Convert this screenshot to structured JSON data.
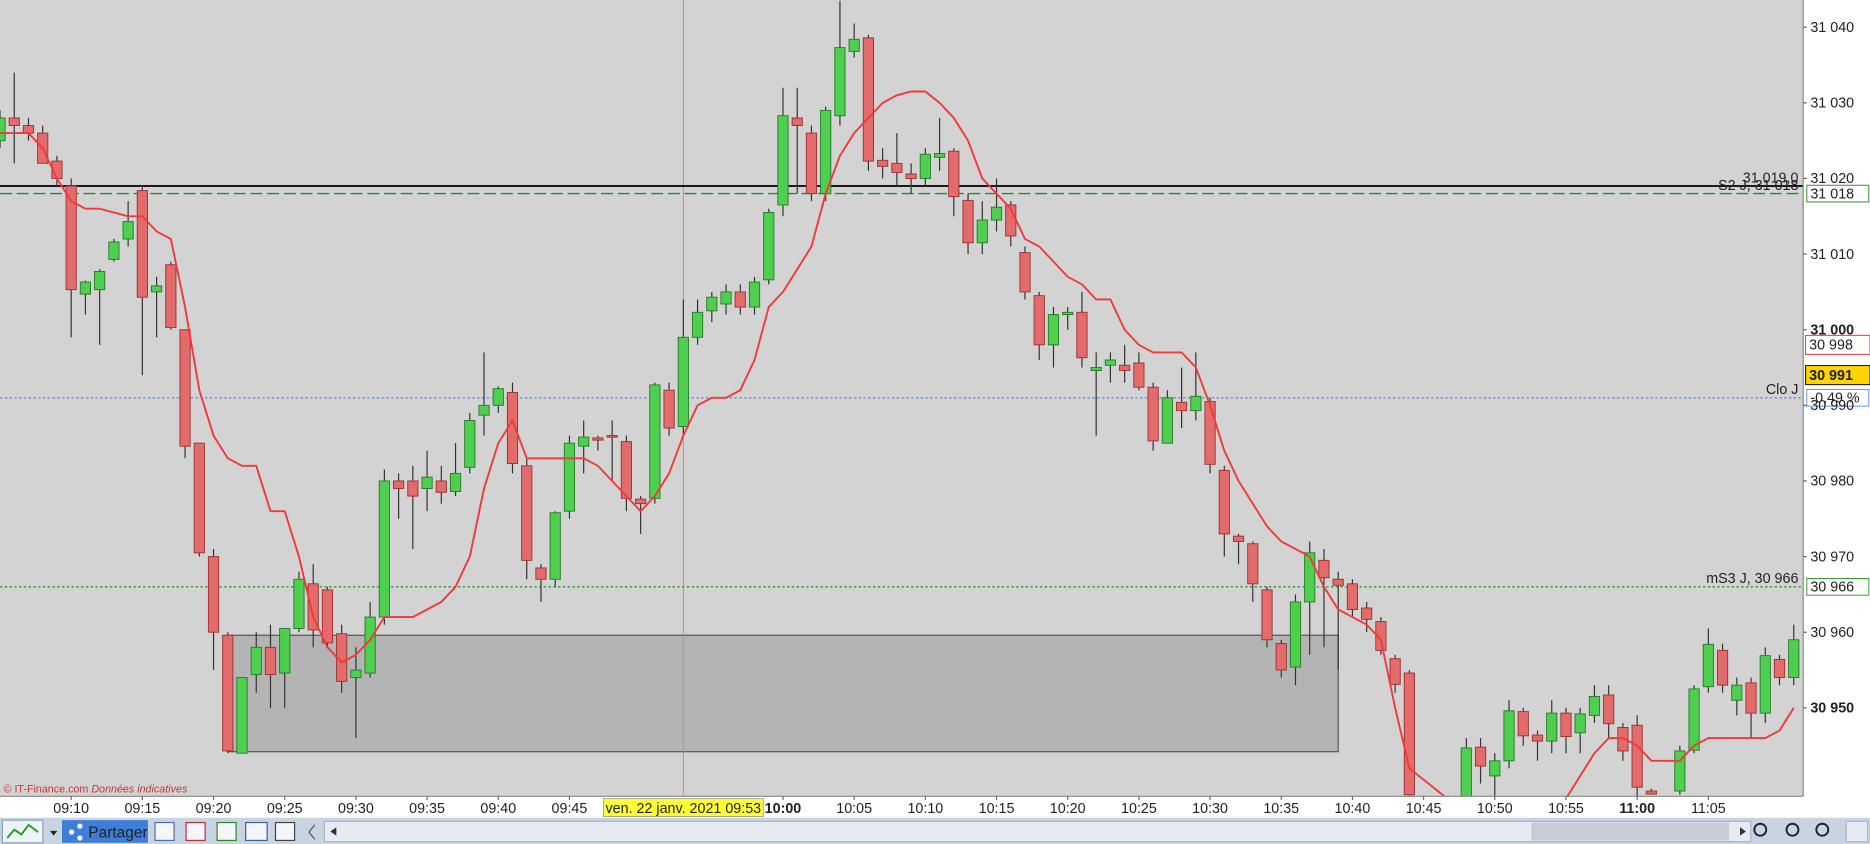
{
  "chart_data": {
    "type": "candlestick",
    "x": [
      "09:05",
      "09:06",
      "09:07",
      "09:08",
      "09:09",
      "09:10",
      "09:11",
      "09:12",
      "09:13",
      "09:14",
      "09:15",
      "09:16",
      "09:17",
      "09:18",
      "09:19",
      "09:20",
      "09:21",
      "09:22",
      "09:23",
      "09:24",
      "09:25",
      "09:26",
      "09:27",
      "09:28",
      "09:29",
      "09:30",
      "09:31",
      "09:32",
      "09:33",
      "09:34",
      "09:35",
      "09:36",
      "09:37",
      "09:38",
      "09:39",
      "09:40",
      "09:41",
      "09:42",
      "09:43",
      "09:44",
      "09:45",
      "09:46",
      "09:47",
      "09:48",
      "09:49",
      "09:50",
      "09:51",
      "09:52",
      "09:53",
      "09:54",
      "09:55",
      "09:56",
      "09:57",
      "09:58",
      "09:59",
      "10:00",
      "10:01",
      "10:02",
      "10:03",
      "10:04",
      "10:05",
      "10:06",
      "10:07",
      "10:08",
      "10:09",
      "10:10",
      "10:11",
      "10:12",
      "10:13",
      "10:14",
      "10:15",
      "10:16",
      "10:17",
      "10:18",
      "10:19",
      "10:20",
      "10:21",
      "10:22",
      "10:23",
      "10:24",
      "10:25",
      "10:26",
      "10:27",
      "10:28",
      "10:29",
      "10:30",
      "10:31",
      "10:32",
      "10:33",
      "10:34",
      "10:35",
      "10:36",
      "10:37",
      "10:38",
      "10:39",
      "10:40",
      "10:41",
      "10:42",
      "10:43",
      "10:44",
      "10:48",
      "10:49",
      "10:50",
      "10:51",
      "10:52",
      "10:53",
      "10:54",
      "10:55",
      "10:56",
      "10:57",
      "10:58",
      "10:59",
      "11:00",
      "11:01",
      "11:03",
      "11:04",
      "11:05",
      "11:06",
      "11:07",
      "11:08",
      "11:09",
      "11:10",
      "11:11"
    ],
    "open": [
      31025,
      31028,
      31027,
      31026,
      31022.3,
      31019,
      31004.7,
      31005.3,
      31009.3,
      31012,
      31018.4,
      31005,
      31008.6,
      31000,
      30985,
      30970,
      30959.6,
      30944,
      30954.4,
      30958,
      30954.6,
      30960.5,
      30966.4,
      30965.6,
      30959.8,
      30954,
      30954.6,
      30962,
      30980,
      30980,
      30979,
      30980,
      30978.6,
      30981.8,
      30988.7,
      30990,
      30991.7,
      30982,
      30968.5,
      30967,
      30976,
      30984.6,
      30985.7,
      30986,
      30985.2,
      30977.6,
      30977.7,
      30992,
      30987.2,
      30999,
      31002.5,
      31003.4,
      31005,
      31003,
      31006.6,
      31016.5,
      31028,
      31026,
      31018,
      31028.3,
      31036.8,
      31038.6,
      31022.4,
      31022,
      31020.6,
      31020,
      31022.8,
      31023.6,
      31017.1,
      31011.5,
      31014.5,
      31016.5,
      31010.2,
      31004.5,
      30998,
      31002,
      31002.3,
      30994.6,
      30995.3,
      30995.3,
      30995.6,
      30992.4,
      30985,
      30990.4,
      30989.3,
      30990.5,
      30981.4,
      30972.7,
      30971.7,
      30965.6,
      30958.5,
      30955.4,
      30964,
      30969.5,
      30967,
      30966.4,
      30963.2,
      30961.4,
      30956.5,
      30954.6,
      30938,
      30944.8,
      30941,
      30943,
      30949.5,
      30946.4,
      30945.6,
      30949.3,
      30946.7,
      30949,
      30951.7,
      30947.4,
      30947.7,
      30939,
      30939,
      30944.4,
      30952.8,
      30957.6,
      30951,
      30953.3,
      30949.3,
      30956.4,
      30954
    ],
    "high": [
      31029,
      31034,
      31028,
      31027,
      31023,
      31020,
      31006.5,
      31008,
      31012,
      31017,
      31019,
      31007,
      31009,
      31000,
      30985,
      30971,
      30960,
      30954,
      30960,
      30961,
      30960.5,
      30968,
      30969,
      30966,
      30961,
      30958,
      30964,
      30981.5,
      30981,
      30982,
      30984,
      30982,
      30985,
      30989,
      30997,
      30992.5,
      30993,
      30983,
      30969,
      30976,
      30986,
      30988,
      30986,
      30988,
      30986,
      30978,
      30993,
      30993,
      31004,
      31004,
      31005,
      31006,
      31006,
      31007,
      31016,
      31032,
      31032,
      31027,
      31029.5,
      31043.5,
      31040.5,
      31039,
      31024,
      31026,
      31022,
      31024,
      31028,
      31024,
      31018,
      31017,
      31020,
      31017,
      31011,
      31005,
      31003,
      31003,
      31005,
      30997,
      30997,
      30998,
      30997,
      30993,
      30992,
      30995,
      30997,
      30991,
      30982,
      30973,
      30972,
      30966,
      30959,
      30965,
      30972,
      30971,
      30968,
      30967,
      30964,
      30962,
      30957,
      30955,
      30946,
      30946,
      30944,
      30951,
      30950,
      30947,
      30951,
      30950,
      30950,
      30953,
      30953,
      30948,
      30949,
      30939.3,
      30945,
      30953,
      30960.5,
      30958.5,
      30954,
      30954,
      30958,
      30957,
      30961
    ],
    "low": [
      31024,
      31022,
      31025,
      31022,
      31019,
      30999,
      31002,
      30998,
      31009,
      31011,
      30994,
      30999,
      31000,
      30983,
      30970,
      30955,
      30944,
      30944,
      30952,
      30950,
      30950,
      30960,
      30958,
      30958,
      30952,
      30946,
      30954,
      30961,
      30975,
      30971,
      30976,
      30977,
      30978,
      30981,
      30986,
      30989,
      30981,
      30967,
      30964,
      30966,
      30975,
      30981,
      30984,
      30980,
      30976,
      30973,
      30977,
      30986,
      30986,
      30998,
      31001,
      31002,
      31002,
      31002,
      31006,
      31015,
      31018,
      31017,
      31017,
      31027,
      31036,
      31021,
      31020,
      31019,
      31018,
      31019,
      31021,
      31015,
      31010,
      31010,
      31013,
      31011,
      31004,
      30996,
      30995,
      31000,
      30995,
      30986,
      30993,
      30993,
      30992,
      30984,
      30985,
      30987,
      30988,
      30981,
      30970,
      30969,
      30964,
      30958,
      30954,
      30953,
      30957,
      30958,
      30955,
      30962,
      30960,
      30957,
      30952,
      30938.4,
      30936,
      30940,
      30937,
      30942,
      30945,
      30943,
      30944,
      30944,
      30944,
      30948,
      30946,
      30943,
      30938,
      30938.5,
      30938.5,
      30944,
      30952,
      30952,
      30949,
      30946,
      30948,
      30953,
      30953
    ],
    "close": [
      31028,
      31027,
      31026,
      31022,
      31020,
      31005.3,
      31006.3,
      31007.7,
      31011.6,
      31014.3,
      31004.3,
      31005.8,
      31000.3,
      30984.6,
      30970.5,
      30960,
      30944.3,
      30954,
      30958,
      30954.4,
      30960.5,
      30967,
      30960.3,
      30958.6,
      30953.5,
      30955,
      30962,
      30980,
      30979,
      30978,
      30980.5,
      30978.5,
      30981,
      30988,
      30990,
      30992.2,
      30982.3,
      30969.5,
      30967,
      30975.8,
      30985,
      30985.8,
      30985.4,
      30985.8,
      30977.7,
      30977,
      30992.7,
      30987,
      30999,
      31002.3,
      31004.3,
      31005,
      31003,
      31006.3,
      31015.5,
      31028.3,
      31027,
      31018,
      31029,
      31037.3,
      31038.4,
      31022.3,
      31021.6,
      31020.8,
      31020,
      31023.2,
      31023.3,
      31017.6,
      31011.5,
      31014.5,
      31016.2,
      31012.4,
      31005,
      30998,
      31002,
      31002.3,
      30996.3,
      30995,
      30996,
      30994.6,
      30992.4,
      30985.3,
      30991,
      30989.3,
      30991.2,
      30982.2,
      30973,
      30972,
      30966.4,
      30959,
      30955,
      30964,
      30970.5,
      30967.2,
      30966.2,
      30963,
      30961.7,
      30957.6,
      30953.1,
      30938.5,
      30944.7,
      30942.3,
      30943,
      30949.6,
      30946.3,
      30945.6,
      30949.3,
      30946.2,
      30949.2,
      30951.5,
      30947.9,
      30944.3,
      30939.5,
      30938.6,
      30944.3,
      30952.5,
      30958.4,
      30953,
      30953,
      30949.3,
      30956.9,
      30954,
      30959
    ],
    "ma": {
      "color": "#f03a3a",
      "values": [
        31026,
        31026,
        31026,
        31024,
        31020,
        31017,
        31016,
        31016,
        31015.5,
        31015,
        31015,
        31013,
        31012,
        31003,
        30992,
        30986,
        30983,
        30982,
        30982,
        30976,
        30976,
        30970,
        30962,
        30958,
        30956,
        30957,
        30959,
        30962,
        30962,
        30962,
        30963,
        30964,
        30966,
        30970,
        30979,
        30985,
        30988,
        30983,
        30983,
        30983,
        30983,
        30983,
        30982,
        30980,
        30978,
        30976,
        30978,
        30981,
        30986,
        30990,
        30991,
        30991,
        30992,
        30996,
        31003,
        31005,
        31008,
        31011,
        31018,
        31023,
        31026,
        31028,
        31030,
        31031,
        31031.5,
        31031.5,
        31030,
        31028,
        31025,
        31020,
        31018,
        31016,
        31012,
        31011,
        31009,
        31007,
        31006,
        31004,
        31004,
        31000,
        30998,
        30997,
        30997,
        30997,
        30995,
        30990,
        30984,
        30980,
        30977,
        30974,
        30972,
        30971,
        30970,
        30966,
        30963,
        30962,
        30961,
        30959,
        30950,
        30942,
        30936,
        30935,
        30934,
        30934,
        30934,
        30935,
        30936,
        30938,
        30941,
        30944,
        30946,
        30946,
        30945,
        30943,
        30943,
        30945,
        30946,
        30946,
        30946,
        30946,
        30946,
        30947,
        30950
      ]
    },
    "up_color": "#4fcf4f",
    "down_color": "#e46b6b",
    "xlim": [
      "09:05",
      "11:12"
    ],
    "ylim": [
      30938.3,
      31043.6
    ],
    "yticks": [
      {
        "value": 31040,
        "label": "31 040"
      },
      {
        "value": 31030,
        "label": "31 030"
      },
      {
        "value": 31020,
        "label": "31 020"
      },
      {
        "value": 31010,
        "label": "31 010"
      },
      {
        "value": 31000,
        "label": "31 000",
        "bold": true
      },
      {
        "value": 30990,
        "label": "30 990"
      },
      {
        "value": 30980,
        "label": "30 980"
      },
      {
        "value": 30970,
        "label": "30 970"
      },
      {
        "value": 30960,
        "label": "30 960"
      },
      {
        "value": 30950,
        "label": "30 950",
        "bold": true
      }
    ],
    "xticks": [
      {
        "value": "09:10"
      },
      {
        "value": "09:15"
      },
      {
        "value": "09:20"
      },
      {
        "value": "09:25"
      },
      {
        "value": "09:30"
      },
      {
        "value": "09:35"
      },
      {
        "value": "09:40"
      },
      {
        "value": "09:45"
      },
      {
        "value": "10:00",
        "bold": true
      },
      {
        "value": "10:05"
      },
      {
        "value": "10:10"
      },
      {
        "value": "10:15"
      },
      {
        "value": "10:20"
      },
      {
        "value": "10:25"
      },
      {
        "value": "10:30"
      },
      {
        "value": "10:35"
      },
      {
        "value": "10:40"
      },
      {
        "value": "10:45"
      },
      {
        "value": "10:50"
      },
      {
        "value": "10:55"
      },
      {
        "value": "11:00",
        "bold": true
      },
      {
        "value": "11:05"
      }
    ],
    "grid": false,
    "levels": [
      {
        "value": 31019,
        "name": "31 019,0",
        "color": "#000000",
        "text_color": "#e8603c",
        "style": "solid"
      },
      {
        "value": 31018,
        "name": "S2 J, 31 018",
        "tag": "31 018",
        "color": "#1f8f1f",
        "style": "dashed"
      },
      {
        "value": 30991,
        "name": "Clo J",
        "tag": "-0,49 %",
        "tag_color": "#cc0000",
        "color": "#5b8ff0",
        "style": "dotted"
      },
      {
        "value": 30966,
        "name": "mS3 J, 30 966",
        "tag": "30 966",
        "color": "#2e9a2e",
        "style": "dotted"
      }
    ],
    "zone": {
      "x": [
        "09:21",
        "10:39"
      ],
      "y": [
        30944.2,
        30959.6
      ],
      "color": "#b4b4b4"
    },
    "price_tags": [
      {
        "value": 30998,
        "label": "30 998",
        "color": "#e03030",
        "bg": "#ffffff"
      },
      {
        "value": 30991,
        "label": "30 991",
        "color": "#000000",
        "bg": "#ffd400"
      }
    ],
    "crosshair": {
      "x": "09:53",
      "label": "ven. 22 janv. 2021 09:53"
    }
  },
  "watermark": {
    "site": "© IT-Finance.com",
    "note": "Données indicatives"
  },
  "toolbar": {
    "share": "Partager"
  }
}
